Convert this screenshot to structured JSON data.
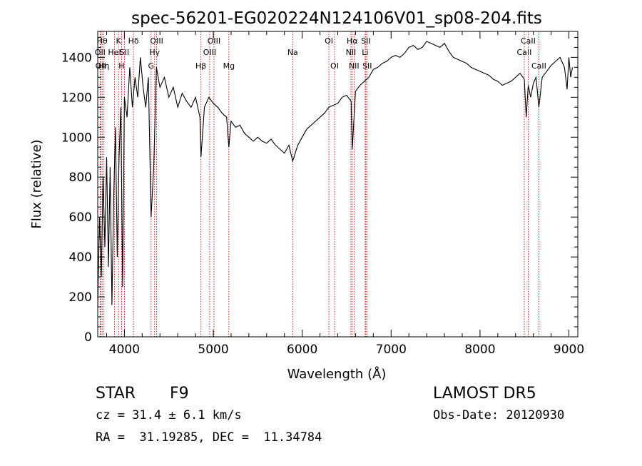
{
  "chart_data": {
    "type": "line",
    "title": "spec-56201-EG020224N124106V01_sp08-204.fits",
    "xlabel": "Wavelength (Å)",
    "ylabel": "Flux (relative)",
    "xlim": [
      3700,
      9100
    ],
    "ylim": [
      0,
      1530
    ],
    "xticks": [
      4000,
      5000,
      6000,
      7000,
      8000,
      9000
    ],
    "yticks": [
      0,
      200,
      400,
      600,
      800,
      1000,
      1200,
      1400
    ],
    "line_color": "#000000",
    "marker_color": "#cc0000",
    "series": [
      {
        "x": [
          3700,
          3720,
          3740,
          3760,
          3780,
          3800,
          3820,
          3840,
          3860,
          3880,
          3900,
          3920,
          3940,
          3960,
          3980,
          4000,
          4030,
          4060,
          4090,
          4120,
          4150,
          4180,
          4210,
          4240,
          4270,
          4300,
          4330,
          4360,
          4400,
          4450,
          4500,
          4550,
          4600,
          4650,
          4700,
          4750,
          4800,
          4850,
          4861,
          4900,
          4950,
          5000,
          5050,
          5100,
          5150,
          5175,
          5200,
          5250,
          5300,
          5350,
          5400,
          5450,
          5500,
          5550,
          5600,
          5650,
          5700,
          5750,
          5800,
          5850,
          5893,
          5950,
          6000,
          6050,
          6100,
          6150,
          6200,
          6250,
          6300,
          6350,
          6400,
          6450,
          6500,
          6550,
          6563,
          6600,
          6650,
          6700,
          6750,
          6800,
          6850,
          6900,
          6950,
          7000,
          7050,
          7100,
          7150,
          7200,
          7250,
          7300,
          7350,
          7400,
          7450,
          7500,
          7550,
          7600,
          7650,
          7700,
          7750,
          7800,
          7850,
          7900,
          7950,
          8000,
          8050,
          8100,
          8150,
          8200,
          8250,
          8300,
          8350,
          8400,
          8450,
          8498,
          8520,
          8542,
          8570,
          8600,
          8630,
          8662,
          8700,
          8750,
          8800,
          8850,
          8900,
          8950,
          8980,
          9000,
          9020,
          9040
        ],
        "y": [
          150,
          600,
          300,
          800,
          450,
          900,
          350,
          850,
          160,
          700,
          1050,
          400,
          900,
          1150,
          250,
          1200,
          1100,
          1350,
          1150,
          1300,
          1200,
          1400,
          1250,
          1150,
          1300,
          600,
          850,
          1350,
          1250,
          1300,
          1200,
          1250,
          1150,
          1220,
          1180,
          1150,
          1200,
          1100,
          900,
          1150,
          1200,
          1170,
          1150,
          1120,
          1100,
          950,
          1080,
          1050,
          1060,
          1020,
          1000,
          980,
          1000,
          980,
          970,
          990,
          960,
          940,
          920,
          960,
          880,
          960,
          1000,
          1040,
          1060,
          1080,
          1100,
          1120,
          1150,
          1160,
          1170,
          1200,
          1210,
          1180,
          940,
          1230,
          1260,
          1280,
          1300,
          1340,
          1350,
          1370,
          1380,
          1400,
          1410,
          1400,
          1420,
          1450,
          1460,
          1440,
          1450,
          1480,
          1470,
          1460,
          1450,
          1470,
          1430,
          1400,
          1390,
          1380,
          1370,
          1350,
          1340,
          1330,
          1320,
          1310,
          1290,
          1280,
          1260,
          1270,
          1280,
          1300,
          1320,
          1290,
          1100,
          1260,
          1200,
          1270,
          1300,
          1150,
          1300,
          1330,
          1360,
          1380,
          1400,
          1350,
          1240,
          1400,
          1300,
          1350
        ]
      }
    ],
    "line_markers": [
      {
        "wl": 3750,
        "label": "Hθ",
        "row": 1
      },
      {
        "wl": 3727,
        "label": "OII",
        "row": 2
      },
      {
        "wl": 3734,
        "label": "OII",
        "row": 3
      },
      {
        "wl": 3770,
        "label": "Hη",
        "row": 3
      },
      {
        "wl": 3889,
        "label": "HeI",
        "row": 2
      },
      {
        "wl": 3934,
        "label": "K",
        "row": 1
      },
      {
        "wl": 3968,
        "label": "H",
        "row": 3
      },
      {
        "wl": 4000,
        "label": "SII",
        "row": 2
      },
      {
        "wl": 4102,
        "label": "Hδ",
        "row": 1
      },
      {
        "wl": 4300,
        "label": "G",
        "row": 3
      },
      {
        "wl": 4340,
        "label": "Hγ",
        "row": 2
      },
      {
        "wl": 4363,
        "label": "OIII",
        "row": 1
      },
      {
        "wl": 4861,
        "label": "Hβ",
        "row": 3
      },
      {
        "wl": 4959,
        "label": "OIII",
        "row": 2
      },
      {
        "wl": 5007,
        "label": "OIII",
        "row": 1
      },
      {
        "wl": 5175,
        "label": "Mg",
        "row": 3
      },
      {
        "wl": 5893,
        "label": "Na",
        "row": 2
      },
      {
        "wl": 6300,
        "label": "OI",
        "row": 1
      },
      {
        "wl": 6364,
        "label": "OI",
        "row": 3
      },
      {
        "wl": 6548,
        "label": "NII",
        "row": 2
      },
      {
        "wl": 6563,
        "label": "Hα",
        "row": 1
      },
      {
        "wl": 6583,
        "label": "NII",
        "row": 3
      },
      {
        "wl": 6708,
        "label": "Li",
        "row": 2
      },
      {
        "wl": 6716,
        "label": "SII",
        "row": 1
      },
      {
        "wl": 6731,
        "label": "SII",
        "row": 3
      },
      {
        "wl": 8498,
        "label": "CaII",
        "row": 2
      },
      {
        "wl": 8542,
        "label": "CaII",
        "row": 1
      },
      {
        "wl": 8662,
        "label": "CaII",
        "row": 3
      }
    ]
  },
  "info": {
    "class": "STAR",
    "subclass": "F9",
    "survey": "LAMOST DR5",
    "redshift": "cz = 31.4 ± 6.1 km/s",
    "obs_date": "Obs-Date: 20120930",
    "coords": "RA =  31.19285, DEC =  11.34784"
  }
}
